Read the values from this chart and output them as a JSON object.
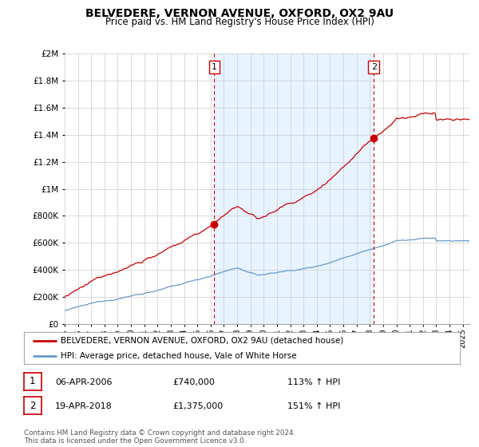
{
  "title": "BELVEDERE, VERNON AVENUE, OXFORD, OX2 9AU",
  "subtitle": "Price paid vs. HM Land Registry's House Price Index (HPI)",
  "hpi_label": "HPI: Average price, detached house, Vale of White Horse",
  "price_label": "BELVEDERE, VERNON AVENUE, OXFORD, OX2 9AU (detached house)",
  "sale1": {
    "date": "06-APR-2006",
    "price": 740000,
    "hpi_pct": "113% ↑ HPI",
    "x": 2006.27
  },
  "sale2": {
    "date": "19-APR-2018",
    "price": 1375000,
    "hpi_pct": "151% ↑ HPI",
    "x": 2018.3
  },
  "footer": "Contains HM Land Registry data © Crown copyright and database right 2024.\nThis data is licensed under the Open Government Licence v3.0.",
  "ylim": [
    0,
    2000000
  ],
  "xlim": [
    1995,
    2025.5
  ],
  "price_color": "#cc0000",
  "hpi_color": "#6699cc",
  "shade_color": "#ddeeff",
  "vline_color": "#cc0000",
  "bg_color": "#ffffff",
  "grid_color": "#cccccc"
}
